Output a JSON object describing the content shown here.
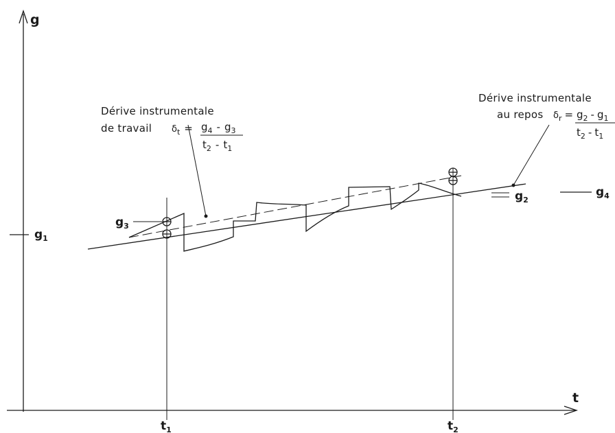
{
  "axes": {
    "y_label": "g",
    "x_label": "t"
  },
  "time_ticks": [
    {
      "base": "t",
      "sub": "1"
    },
    {
      "base": "t",
      "sub": "2"
    }
  ],
  "levels": {
    "g1": {
      "base": "g",
      "sub": "1"
    },
    "g2": {
      "base": "g",
      "sub": "2"
    },
    "g3": {
      "base": "g",
      "sub": "3"
    },
    "g4": {
      "base": "g",
      "sub": "4"
    }
  },
  "annotation_work": {
    "line1": "Dérive instrumentale",
    "line2": "de travail",
    "formula": {
      "lhs_base": "δ",
      "lhs_sub": "t",
      "equals": "=",
      "num": [
        {
          "base": "g",
          "sub": "4"
        },
        {
          "op": "-"
        },
        {
          "base": "g",
          "sub": "3"
        }
      ],
      "den": [
        {
          "base": "t",
          "sub": "2"
        },
        {
          "op": "-"
        },
        {
          "base": "t",
          "sub": "1"
        }
      ]
    }
  },
  "annotation_rest": {
    "line1": "Dérive instrumentale",
    "line2": "au repos",
    "formula": {
      "lhs_base": "δ",
      "lhs_sub": "r",
      "equals": "=",
      "num": [
        {
          "base": "g",
          "sub": "2"
        },
        {
          "op": "-"
        },
        {
          "base": "g",
          "sub": "1"
        }
      ],
      "den": [
        {
          "base": "t",
          "sub": "2"
        },
        {
          "op": "-"
        },
        {
          "base": "t",
          "sub": "1"
        }
      ]
    }
  }
}
